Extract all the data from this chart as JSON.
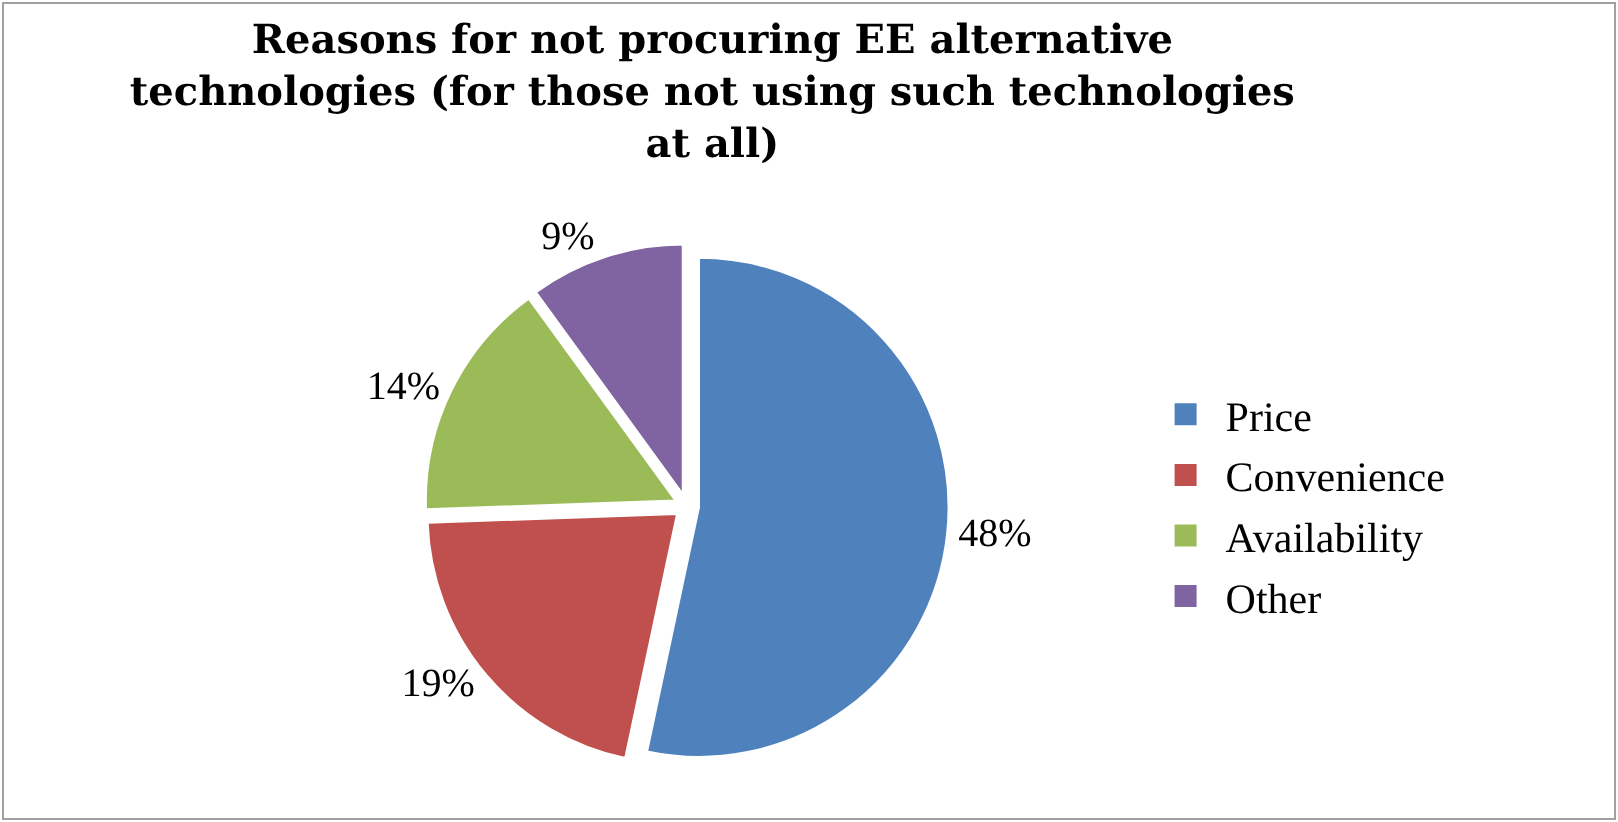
{
  "chart_data": {
    "type": "pie",
    "title": "Reasons for not procuring EE alternative technologies (for those not using such technologies at all)",
    "categories": [
      "Price",
      "Convenience",
      "Availability",
      "Other"
    ],
    "values": [
      48,
      19,
      14,
      9
    ],
    "value_labels": [
      "48%",
      "19%",
      "14%",
      "9%"
    ],
    "colors": [
      "#4f81bd",
      "#c0504d",
      "#9bbb59",
      "#8064a2"
    ],
    "legend": "right"
  }
}
